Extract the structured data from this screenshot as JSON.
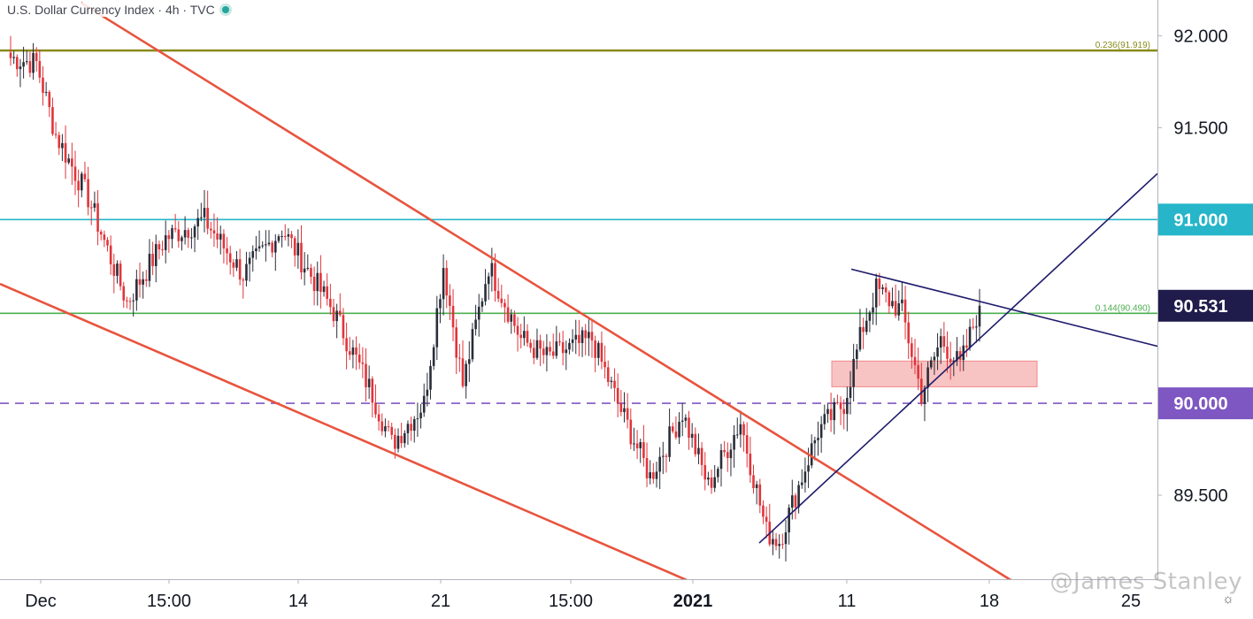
{
  "header": {
    "title": "U.S. Dollar Currency Index · 4h · TVC"
  },
  "watermark": "@James Stanley",
  "colors": {
    "up": "#2a2e39",
    "down": "#e0353b",
    "channel": "#e8543e",
    "triangle": "#1f1c6b",
    "fib236": "#8a8a1a",
    "fib144": "#4caf50",
    "level91": "#26b5c9",
    "level90": "#7e57c2",
    "zone": "#f7b8b8"
  },
  "chart_data": {
    "type": "candlestick",
    "title": "U.S. Dollar Currency Index · 4h · TVC",
    "ylim": [
      89.03,
      92.18
    ],
    "x_ticks": [
      "Dec",
      "15:00",
      "14",
      "21",
      "15:00",
      "2021",
      "11",
      "18",
      "25"
    ],
    "y_ticks": [
      {
        "value": 92.0,
        "label": "92.000"
      },
      {
        "value": 91.5,
        "label": "91.500"
      },
      {
        "value": 89.5,
        "label": "89.500"
      }
    ],
    "price_labels": [
      {
        "value": 91.0,
        "label": "91.000",
        "color": "#26b5c9"
      },
      {
        "value": 90.531,
        "label": "90.531",
        "color": "#1f1c4b"
      },
      {
        "value": 90.0,
        "label": "90.000",
        "color": "#7e57c2"
      }
    ],
    "levels": [
      {
        "name": "fib-0236",
        "value": 91.92,
        "label": "0.236(91.919)",
        "style": "solid",
        "color": "#8a8a1a"
      },
      {
        "name": "fib-0144",
        "value": 90.49,
        "label": "0.144(90.490)",
        "style": "solid",
        "color": "#4caf50"
      },
      {
        "name": "level-91",
        "value": 91.0,
        "label": "",
        "style": "solid",
        "color": "#26b5c9"
      },
      {
        "name": "level-90",
        "value": 90.0,
        "label": "",
        "style": "dashed",
        "color": "#7e57c2"
      }
    ],
    "anchors": [
      {
        "time": 0,
        "value": 91.88
      },
      {
        "time": 8,
        "value": 91.85
      },
      {
        "time": 14,
        "value": 91.46
      },
      {
        "time": 24,
        "value": 91.12
      },
      {
        "time": 36,
        "value": 90.55
      },
      {
        "time": 48,
        "value": 90.9
      },
      {
        "time": 60,
        "value": 91.0
      },
      {
        "time": 72,
        "value": 90.7
      },
      {
        "time": 84,
        "value": 90.95
      },
      {
        "time": 100,
        "value": 90.5
      },
      {
        "time": 112,
        "value": 90.05
      },
      {
        "time": 118,
        "value": 89.78
      },
      {
        "time": 128,
        "value": 90.0
      },
      {
        "time": 134,
        "value": 90.75
      },
      {
        "time": 140,
        "value": 90.1
      },
      {
        "time": 148,
        "value": 90.75
      },
      {
        "time": 158,
        "value": 90.35
      },
      {
        "time": 166,
        "value": 90.25
      },
      {
        "time": 180,
        "value": 90.35
      },
      {
        "time": 188,
        "value": 90.0
      },
      {
        "time": 198,
        "value": 89.6
      },
      {
        "time": 208,
        "value": 89.95
      },
      {
        "time": 216,
        "value": 89.55
      },
      {
        "time": 226,
        "value": 89.9
      },
      {
        "time": 234,
        "value": 89.3
      },
      {
        "time": 238,
        "value": 89.25
      },
      {
        "time": 250,
        "value": 89.85
      },
      {
        "time": 258,
        "value": 90.0
      },
      {
        "time": 264,
        "value": 90.42
      },
      {
        "time": 268,
        "value": 90.62
      },
      {
        "time": 276,
        "value": 90.5
      },
      {
        "time": 282,
        "value": 90.05
      },
      {
        "time": 288,
        "value": 90.35
      },
      {
        "time": 294,
        "value": 90.2
      },
      {
        "time": 300,
        "value": 90.531
      }
    ],
    "drawings": [
      {
        "name": "channel-upper",
        "points": [
          [
            91.58,
            92.18
          ],
          [
            1145,
            89.03
          ]
        ]
      },
      {
        "name": "channel-lower",
        "points": [
          [
            0,
            90.65
          ],
          [
            780,
            89.03
          ]
        ]
      },
      {
        "name": "triangle-top",
        "points": [
          [
            962,
            90.73
          ],
          [
            1416,
            90.18
          ]
        ]
      },
      {
        "name": "triangle-bottom",
        "points": [
          [
            858,
            89.24
          ],
          [
            1308,
            91.25
          ]
        ]
      }
    ],
    "zone": {
      "from_x": 940,
      "to_x": 1172,
      "top": 90.23,
      "bottom": 90.09
    }
  }
}
